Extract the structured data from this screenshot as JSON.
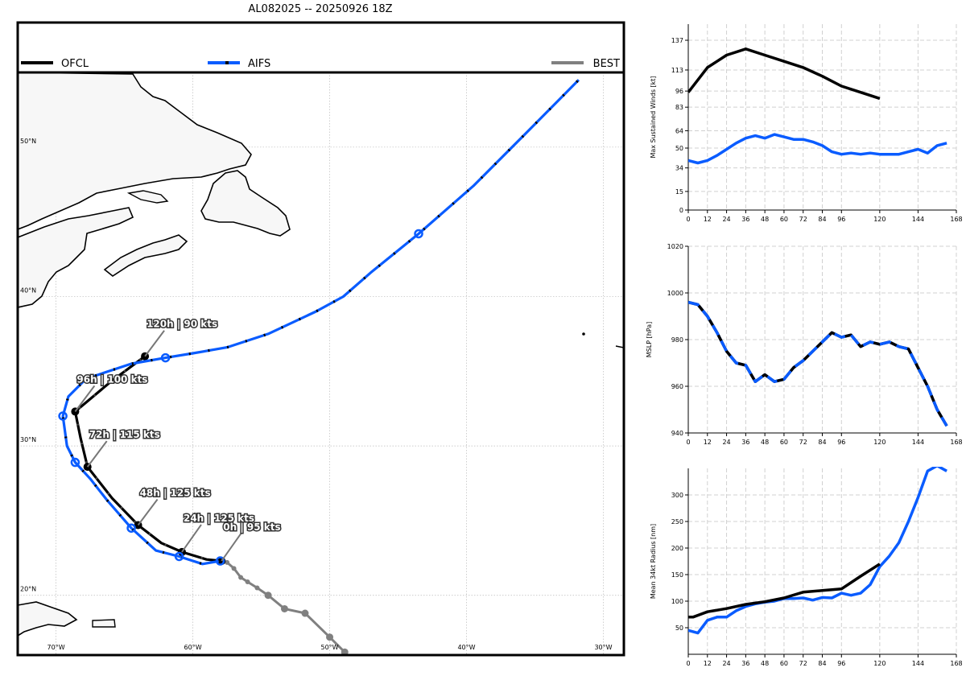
{
  "title": "AL082025 -- 20250926 18Z",
  "colors": {
    "ofcl": "#000000",
    "aifs": "#0a5cff",
    "best": "#808080"
  },
  "chart_data": [
    {
      "type": "line",
      "subtype": "map",
      "title": "AL082025 -- 20250926 18Z",
      "legend": [
        {
          "name": "OFCL",
          "placement": "top-left"
        },
        {
          "name": "AIFS",
          "placement": "top-center"
        },
        {
          "name": "BEST",
          "placement": "top-right"
        }
      ],
      "lon_range": [
        -72.8,
        -28.5
      ],
      "lat_range": [
        16,
        55
      ],
      "lat_ticks": [
        {
          "value": 20,
          "label": "20°N"
        },
        {
          "value": 30,
          "label": "30°N"
        },
        {
          "value": 40,
          "label": "40°N"
        },
        {
          "value": 50,
          "label": "50°N"
        }
      ],
      "lon_ticks": [
        {
          "value": -70,
          "label": "70°W"
        },
        {
          "value": -60,
          "label": "60°W"
        },
        {
          "value": -50,
          "label": "50°W"
        },
        {
          "value": -40,
          "label": "40°W"
        },
        {
          "value": -30,
          "label": "30°W"
        }
      ],
      "series": [
        {
          "name": "BEST",
          "points": [
            [
              -58.0,
              22.4
            ],
            [
              -57.5,
              22.2
            ],
            [
              -57.0,
              21.8
            ],
            [
              -56.5,
              21.2
            ],
            [
              -56.0,
              20.9
            ],
            [
              -55.3,
              20.5
            ],
            [
              -54.5,
              20.0
            ],
            [
              -53.3,
              19.1
            ],
            [
              -51.8,
              18.8
            ],
            [
              -50.0,
              17.2
            ],
            [
              -48.9,
              16.2
            ]
          ]
        },
        {
          "name": "OFCL",
          "points": [
            [
              -57.9,
              22.3
            ],
            [
              -59.0,
              22.4
            ],
            [
              -60.8,
              22.9
            ],
            [
              -62.3,
              23.5
            ],
            [
              -64.0,
              24.7
            ],
            [
              -65.9,
              26.5
            ],
            [
              -67.7,
              28.6
            ],
            [
              -68.2,
              30.5
            ],
            [
              -68.6,
              32.3
            ],
            [
              -66.0,
              34.3
            ],
            [
              -63.5,
              36.0
            ]
          ]
        },
        {
          "name": "AIFS",
          "points": [
            [
              -58.0,
              22.3
            ],
            [
              -59.3,
              22.1
            ],
            [
              -61.0,
              22.6
            ],
            [
              -62.7,
              23.0
            ],
            [
              -64.5,
              24.5
            ],
            [
              -66.3,
              26.4
            ],
            [
              -67.5,
              27.8
            ],
            [
              -68.6,
              28.9
            ],
            [
              -69.2,
              30.0
            ],
            [
              -69.5,
              32.0
            ],
            [
              -69.1,
              33.3
            ],
            [
              -67.8,
              34.5
            ],
            [
              -64.5,
              35.5
            ],
            [
              -62.0,
              35.9
            ],
            [
              -60.0,
              36.2
            ],
            [
              -57.5,
              36.6
            ],
            [
              -54.5,
              37.5
            ],
            [
              -51.0,
              39.0
            ],
            [
              -49.0,
              40.0
            ],
            [
              -47.0,
              41.6
            ],
            [
              -43.5,
              44.2
            ],
            [
              -39.5,
              47.4
            ],
            [
              -35.8,
              50.8
            ],
            [
              -31.8,
              54.5
            ]
          ]
        }
      ],
      "annotations": [
        {
          "text": "0h | 95 kts",
          "lon": -57.9,
          "lat": 22.3
        },
        {
          "text": "24h | 125 kts",
          "lon": -60.8,
          "lat": 22.9
        },
        {
          "text": "48h | 125 kts",
          "lon": -64.0,
          "lat": 24.7
        },
        {
          "text": "72h | 115 kts",
          "lon": -67.7,
          "lat": 28.6
        },
        {
          "text": "96h | 100 kts",
          "lon": -68.6,
          "lat": 32.3
        },
        {
          "text": "120h | 90 kts",
          "lon": -63.5,
          "lat": 36.0
        }
      ]
    },
    {
      "type": "line",
      "title": "",
      "xlabel": "",
      "ylabel": "Max Sustained Winds [kt]",
      "xlim": [
        0,
        168
      ],
      "ylim": [
        0,
        150
      ],
      "x_ticks": [
        0,
        12,
        24,
        36,
        48,
        60,
        72,
        84,
        96,
        120,
        144,
        168
      ],
      "y_ticks": [
        0,
        15,
        34,
        50,
        64,
        83,
        96,
        113,
        137
      ],
      "grid": true,
      "series": [
        {
          "name": "OFCL",
          "x": [
            0,
            12,
            24,
            36,
            48,
            60,
            72,
            84,
            96,
            108,
            120
          ],
          "y": [
            95,
            115,
            125,
            130,
            125,
            120,
            115,
            108,
            100,
            95,
            90
          ]
        },
        {
          "name": "AIFS",
          "x": [
            0,
            6,
            12,
            18,
            24,
            30,
            36,
            42,
            48,
            54,
            60,
            66,
            72,
            78,
            84,
            90,
            96,
            102,
            108,
            114,
            120,
            126,
            132,
            138,
            144,
            150,
            156,
            162
          ],
          "y": [
            40,
            38,
            40,
            44,
            49,
            54,
            58,
            60,
            58,
            61,
            59,
            57,
            57,
            55,
            52,
            47,
            45,
            46,
            45,
            46,
            45,
            45,
            45,
            47,
            49,
            46,
            52,
            54
          ]
        }
      ]
    },
    {
      "type": "line",
      "title": "",
      "xlabel": "",
      "ylabel": "MSLP [hPa]",
      "xlim": [
        0,
        168
      ],
      "ylim": [
        940,
        1020
      ],
      "x_ticks": [
        0,
        12,
        24,
        36,
        48,
        60,
        72,
        84,
        96,
        120,
        144,
        168
      ],
      "y_ticks": [
        940,
        960,
        980,
        1000,
        1020
      ],
      "grid": true,
      "series": [
        {
          "name": "OFCL",
          "x": [
            0,
            6,
            12,
            18,
            24,
            30,
            36,
            42,
            48,
            54,
            60,
            66,
            72,
            78,
            84,
            90,
            96,
            102,
            108,
            114,
            120,
            126,
            132,
            138,
            144,
            150,
            156,
            162
          ],
          "y": [
            996,
            995,
            990,
            983,
            975,
            970,
            969,
            962,
            965,
            962,
            963,
            968,
            971,
            975,
            979,
            983,
            981,
            982,
            977,
            979,
            978,
            979,
            977,
            976,
            968,
            960,
            950,
            943
          ]
        },
        {
          "name": "AIFS",
          "x": [
            0,
            6,
            12,
            18,
            24,
            30,
            36,
            42,
            48,
            54,
            60,
            66,
            72,
            78,
            84,
            90,
            96,
            102,
            108,
            114,
            120,
            126,
            132,
            138,
            144,
            150,
            156,
            162
          ],
          "y": [
            996,
            995,
            990,
            983,
            975,
            970,
            969,
            962,
            965,
            962,
            963,
            968,
            971,
            975,
            979,
            983,
            981,
            982,
            977,
            979,
            978,
            979,
            977,
            976,
            968,
            960,
            950,
            943
          ]
        }
      ]
    },
    {
      "type": "line",
      "title": "",
      "xlabel": "",
      "ylabel": "Mean 34kt Radius [nm]",
      "xlim": [
        0,
        168
      ],
      "ylim": [
        0,
        350
      ],
      "x_ticks": [
        0,
        12,
        24,
        36,
        48,
        60,
        72,
        84,
        96,
        120,
        144,
        168
      ],
      "y_ticks": [
        50,
        100,
        150,
        200,
        250,
        300
      ],
      "grid": true,
      "series": [
        {
          "name": "OFCL",
          "x": [
            0,
            3,
            12,
            24,
            36,
            48,
            60,
            72,
            84,
            96,
            108,
            120
          ],
          "y": [
            70,
            70,
            80,
            86,
            94,
            99,
            106,
            117,
            120,
            123,
            147,
            170
          ]
        },
        {
          "name": "AIFS",
          "x": [
            0,
            6,
            12,
            18,
            24,
            30,
            36,
            42,
            48,
            54,
            60,
            66,
            72,
            78,
            84,
            90,
            96,
            102,
            108,
            114,
            120,
            126,
            132,
            138,
            144,
            150,
            156,
            162
          ],
          "y": [
            45,
            40,
            64,
            70,
            70,
            82,
            90,
            95,
            98,
            100,
            105,
            105,
            106,
            102,
            107,
            106,
            115,
            111,
            115,
            131,
            165,
            185,
            210,
            250,
            295,
            345,
            355,
            345
          ]
        }
      ]
    }
  ]
}
